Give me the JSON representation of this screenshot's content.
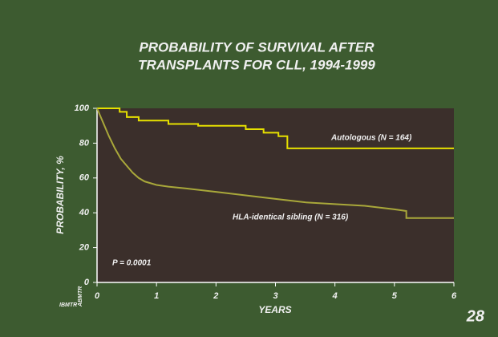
{
  "chart_data": {
    "type": "line",
    "title": [
      "PROBABILITY OF SURVIVAL AFTER",
      "TRANSPLANTS FOR CLL, 1994-1999"
    ],
    "x_label": "YEARS",
    "y_label": "PROBABILITY, %",
    "xlim": [
      0,
      6
    ],
    "xticks": [
      0,
      1,
      2,
      3,
      4,
      5,
      6
    ],
    "ylim": [
      0,
      100
    ],
    "yticks": [
      0,
      20,
      40,
      60,
      80,
      100
    ],
    "series": [
      {
        "name": "Autologous (N = 164)",
        "color": "#e6e000",
        "x": [
          0,
          0.38,
          0.38,
          0.5,
          0.5,
          0.7,
          0.7,
          1.2,
          1.2,
          1.7,
          1.7,
          2.5,
          2.5,
          2.8,
          2.8,
          3.05,
          3.05,
          3.2,
          3.2,
          6
        ],
        "values": [
          100,
          100,
          98,
          98,
          95,
          95,
          93,
          93,
          91,
          91,
          90,
          90,
          88,
          88,
          86,
          86,
          84,
          84,
          77,
          77
        ]
      },
      {
        "name": "HLA-identical sibling (N = 316)",
        "color": "#a9a83a",
        "x": [
          0,
          0.1,
          0.2,
          0.3,
          0.4,
          0.5,
          0.6,
          0.7,
          0.8,
          1,
          1.2,
          1.5,
          2,
          2.5,
          3,
          3.5,
          4,
          4.5,
          5,
          5.2,
          5.2,
          6
        ],
        "values": [
          100,
          92,
          84,
          77,
          71,
          67,
          63,
          60,
          58,
          56,
          55,
          54,
          52,
          50,
          48,
          46,
          45,
          44,
          42,
          41,
          37,
          37
        ]
      }
    ],
    "annotations": [
      "P = 0.0001",
      "28"
    ],
    "logo": [
      "IBMTR",
      "ABMTR"
    ]
  }
}
